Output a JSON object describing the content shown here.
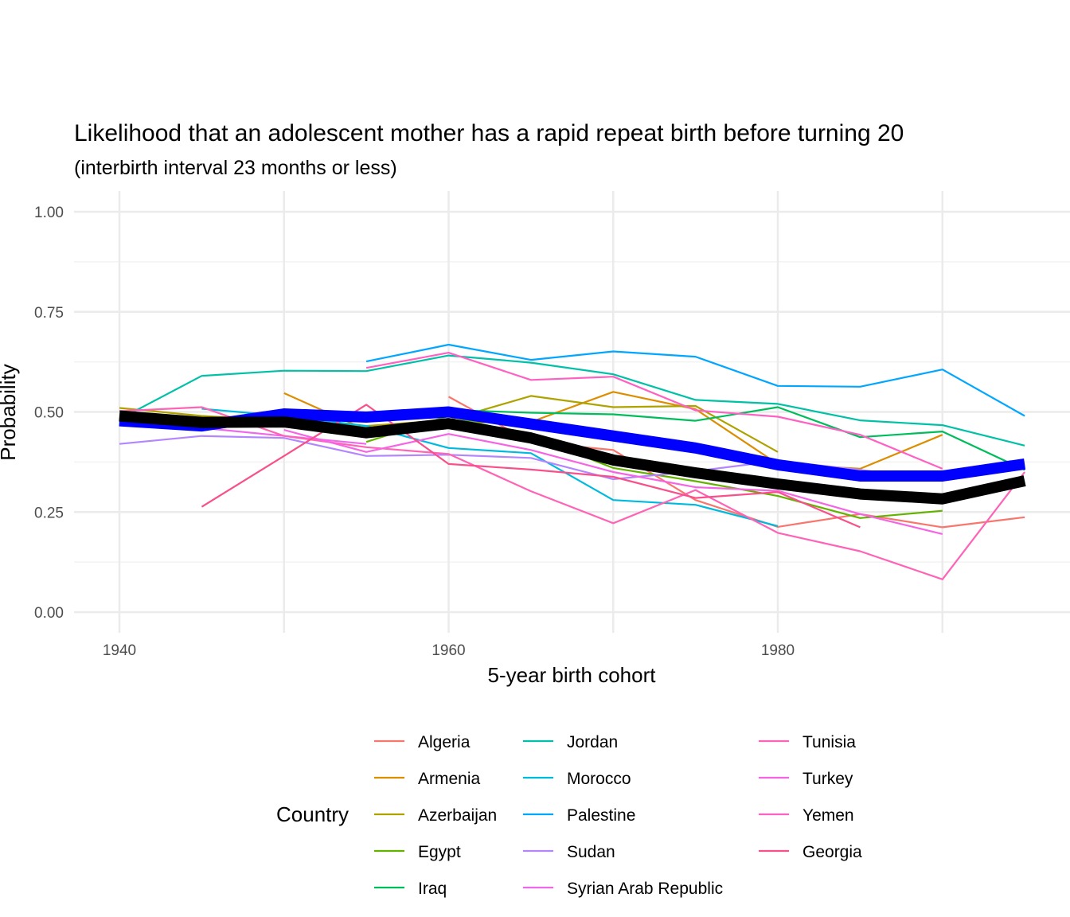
{
  "chart_data": {
    "type": "line",
    "title": "Likelihood that an adolescent mother has a rapid repeat birth before turning 20",
    "subtitle": "(interbirth interval 23 months or less)",
    "xlabel": "5-year birth cohort",
    "ylabel": "Probability",
    "xlim": [
      1937.5,
      1997.5
    ],
    "ylim": [
      -0.05,
      1.05
    ],
    "x_ticks": [
      1940,
      1960,
      1980
    ],
    "x_tick_labels": [
      "1940",
      "1960",
      "1980"
    ],
    "y_ticks": [
      0,
      0.25,
      0.5,
      0.75,
      1.0
    ],
    "y_tick_labels": [
      "0.00",
      "0.25",
      "0.50",
      "0.75",
      "1.00"
    ],
    "grid": true,
    "legend_title": "Country",
    "legend_position": "bottom",
    "series": [
      {
        "name": "Algeria",
        "color": "#F8766D",
        "points": [
          [
            1960,
            0.538
          ],
          [
            1965,
            0.425
          ],
          [
            1970,
            0.405
          ],
          [
            1975,
            0.28
          ],
          [
            1980,
            0.213
          ],
          [
            1985,
            0.245
          ],
          [
            1990,
            0.212
          ],
          [
            1995,
            0.237
          ]
        ]
      },
      {
        "name": "Armenia",
        "color": "#DB8E00",
        "points": [
          [
            1950,
            0.547
          ],
          [
            1955,
            0.455
          ],
          [
            1960,
            0.475
          ],
          [
            1965,
            0.475
          ],
          [
            1970,
            0.55
          ],
          [
            1975,
            0.507
          ],
          [
            1980,
            0.37
          ],
          [
            1985,
            0.358
          ],
          [
            1990,
            0.443
          ]
        ]
      },
      {
        "name": "Azerbaijan",
        "color": "#AEA200",
        "points": [
          [
            1940,
            0.51
          ],
          [
            1945,
            0.49
          ],
          [
            1950,
            0.478
          ],
          [
            1955,
            0.465
          ],
          [
            1960,
            0.48
          ],
          [
            1965,
            0.54
          ],
          [
            1970,
            0.512
          ],
          [
            1975,
            0.515
          ],
          [
            1980,
            0.4
          ]
        ]
      },
      {
        "name": "Egypt",
        "color": "#64B200",
        "points": [
          [
            1955,
            0.425
          ],
          [
            1960,
            0.49
          ],
          [
            1965,
            0.44
          ],
          [
            1970,
            0.36
          ],
          [
            1975,
            0.327
          ],
          [
            1980,
            0.29
          ],
          [
            1985,
            0.235
          ],
          [
            1990,
            0.253
          ]
        ]
      },
      {
        "name": "Iraq",
        "color": "#00BD5C",
        "points": [
          [
            1960,
            0.505
          ],
          [
            1965,
            0.498
          ],
          [
            1970,
            0.494
          ],
          [
            1975,
            0.478
          ],
          [
            1980,
            0.512
          ],
          [
            1985,
            0.437
          ],
          [
            1990,
            0.451
          ],
          [
            1995,
            0.355
          ]
        ]
      },
      {
        "name": "Jordan",
        "color": "#00C1A7",
        "points": [
          [
            1940,
            0.482
          ],
          [
            1945,
            0.59
          ],
          [
            1950,
            0.603
          ],
          [
            1955,
            0.602
          ],
          [
            1960,
            0.641
          ],
          [
            1965,
            0.623
          ],
          [
            1970,
            0.594
          ],
          [
            1975,
            0.53
          ],
          [
            1980,
            0.52
          ],
          [
            1985,
            0.479
          ],
          [
            1990,
            0.467
          ],
          [
            1995,
            0.416
          ]
        ]
      },
      {
        "name": "Morocco",
        "color": "#00BADE",
        "points": [
          [
            1945,
            0.508
          ],
          [
            1950,
            0.49
          ],
          [
            1955,
            0.465
          ],
          [
            1960,
            0.41
          ],
          [
            1965,
            0.397
          ],
          [
            1970,
            0.28
          ],
          [
            1975,
            0.268
          ],
          [
            1980,
            0.215
          ]
        ]
      },
      {
        "name": "Palestine",
        "color": "#00A6FF",
        "points": [
          [
            1955,
            0.626
          ],
          [
            1960,
            0.668
          ],
          [
            1965,
            0.63
          ],
          [
            1970,
            0.651
          ],
          [
            1975,
            0.638
          ],
          [
            1980,
            0.565
          ],
          [
            1985,
            0.563
          ],
          [
            1990,
            0.606
          ],
          [
            1995,
            0.49
          ]
        ]
      },
      {
        "name": "Sudan",
        "color": "#B385FF",
        "points": [
          [
            1940,
            0.42
          ],
          [
            1945,
            0.44
          ],
          [
            1950,
            0.435
          ],
          [
            1955,
            0.39
          ],
          [
            1960,
            0.393
          ],
          [
            1965,
            0.385
          ],
          [
            1970,
            0.332
          ],
          [
            1975,
            0.352
          ],
          [
            1980,
            0.378
          ],
          [
            1985,
            0.355
          ],
          [
            1990,
            0.33
          ]
        ]
      },
      {
        "name": "Syrian Arab Republic",
        "color": "#EF67EB",
        "points": [
          [
            1940,
            0.478
          ],
          [
            1945,
            0.46
          ],
          [
            1950,
            0.44
          ],
          [
            1955,
            0.42
          ]
        ]
      },
      {
        "name": "Tunisia",
        "color": "#FF63B6",
        "points": [
          [
            1940,
            0.502
          ],
          [
            1945,
            0.512
          ],
          [
            1950,
            0.44
          ],
          [
            1955,
            0.412
          ],
          [
            1960,
            0.395
          ],
          [
            1965,
            0.302
          ],
          [
            1970,
            0.222
          ],
          [
            1975,
            0.305
          ],
          [
            1980,
            0.198
          ],
          [
            1985,
            0.152
          ],
          [
            1990,
            0.082
          ],
          [
            1995,
            0.35
          ]
        ]
      },
      {
        "name": "Turkey",
        "color": "#F564E3",
        "points": [
          [
            1950,
            0.455
          ],
          [
            1955,
            0.4
          ],
          [
            1960,
            0.445
          ],
          [
            1965,
            0.405
          ],
          [
            1970,
            0.35
          ],
          [
            1975,
            0.312
          ],
          [
            1980,
            0.303
          ],
          [
            1985,
            0.245
          ],
          [
            1990,
            0.195
          ]
        ]
      },
      {
        "name": "Yemen",
        "color": "#FF61C3",
        "points": [
          [
            1955,
            0.61
          ],
          [
            1960,
            0.648
          ],
          [
            1965,
            0.58
          ],
          [
            1970,
            0.588
          ],
          [
            1975,
            0.504
          ],
          [
            1980,
            0.488
          ],
          [
            1985,
            0.443
          ],
          [
            1990,
            0.358
          ]
        ]
      },
      {
        "name": "Georgia",
        "color": "#F8508A",
        "points": [
          [
            1945,
            0.263
          ],
          [
            1950,
            0.39
          ],
          [
            1955,
            0.518
          ],
          [
            1960,
            0.37
          ],
          [
            1965,
            0.356
          ],
          [
            1970,
            0.338
          ],
          [
            1975,
            0.285
          ],
          [
            1980,
            0.3
          ],
          [
            1985,
            0.212
          ]
        ]
      }
    ],
    "summary_lines": [
      {
        "color": "#0000FF",
        "points": [
          [
            1940,
            0.478
          ],
          [
            1945,
            0.465
          ],
          [
            1950,
            0.495
          ],
          [
            1955,
            0.487
          ],
          [
            1960,
            0.5
          ],
          [
            1965,
            0.47
          ],
          [
            1970,
            0.44
          ],
          [
            1975,
            0.41
          ],
          [
            1980,
            0.368
          ],
          [
            1985,
            0.34
          ],
          [
            1990,
            0.34
          ],
          [
            1995,
            0.37
          ]
        ]
      },
      {
        "color": "#000000",
        "points": [
          [
            1940,
            0.49
          ],
          [
            1945,
            0.474
          ],
          [
            1950,
            0.475
          ],
          [
            1955,
            0.448
          ],
          [
            1960,
            0.471
          ],
          [
            1965,
            0.435
          ],
          [
            1970,
            0.38
          ],
          [
            1975,
            0.348
          ],
          [
            1980,
            0.32
          ],
          [
            1985,
            0.295
          ],
          [
            1990,
            0.283
          ],
          [
            1995,
            0.328
          ]
        ]
      }
    ]
  }
}
